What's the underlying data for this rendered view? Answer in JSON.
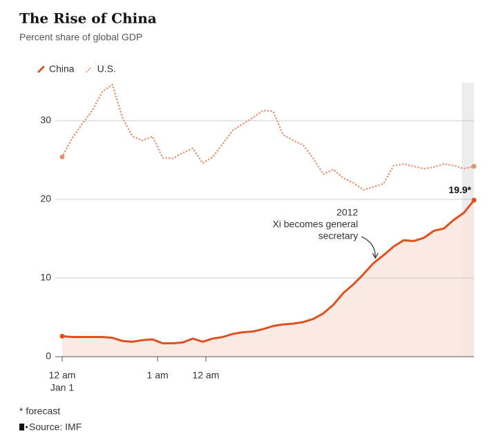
{
  "chart_data": {
    "type": "line",
    "title": "The Rise of China",
    "subtitle": "Percent share of global GDP",
    "x": [
      0,
      1,
      2,
      3,
      4,
      5,
      6,
      7,
      8,
      9,
      10,
      11,
      12,
      13,
      14,
      15,
      16,
      17,
      18,
      19,
      20,
      21,
      22,
      23,
      24,
      25,
      26,
      27,
      28,
      29,
      30,
      31,
      32,
      33,
      34,
      35,
      36,
      37,
      38,
      39,
      40,
      41
    ],
    "xlim": [
      0,
      41
    ],
    "xticks": [
      {
        "value": 0,
        "label": "12 am",
        "sublabel": "Jan 1"
      },
      {
        "value": 9.5,
        "label": "1 am"
      },
      {
        "value": 14.3,
        "label": "12 am"
      }
    ],
    "ylim": [
      0,
      35
    ],
    "yticks": [
      0,
      10,
      20,
      30
    ],
    "grid": true,
    "series": [
      {
        "name": "China",
        "color": "#e0501e",
        "style": "solid",
        "area_color": "#fae5de",
        "values": [
          2.6,
          2.5,
          2.5,
          2.5,
          2.5,
          2.4,
          2.0,
          1.9,
          2.1,
          2.2,
          1.7,
          1.7,
          1.8,
          2.3,
          1.9,
          2.3,
          2.5,
          2.9,
          3.1,
          3.2,
          3.5,
          3.9,
          4.1,
          4.2,
          4.4,
          4.8,
          5.5,
          6.6,
          8.1,
          9.2,
          10.5,
          11.9,
          12.9,
          14.0,
          14.8,
          14.7,
          15.1,
          16.0,
          16.3,
          17.4,
          18.3,
          19.9
        ],
        "end_label": "19.9*"
      },
      {
        "name": "U.S.",
        "color": "#e8906a",
        "style": "dotted",
        "values": [
          25.4,
          27.8,
          29.6,
          31.3,
          33.7,
          34.6,
          30.4,
          28.0,
          27.5,
          28.0,
          25.3,
          25.2,
          25.9,
          26.5,
          24.6,
          25.4,
          27.1,
          28.8,
          29.6,
          30.4,
          31.3,
          31.2,
          28.2,
          27.5,
          26.9,
          25.2,
          23.2,
          23.8,
          22.7,
          22.1,
          21.2,
          21.6,
          22.0,
          24.3,
          24.5,
          24.2,
          23.9,
          24.1,
          24.5,
          24.3,
          23.9,
          24.2
        ]
      }
    ],
    "forecast_range": [
      39.8,
      41
    ],
    "annotation": {
      "x": 29.8,
      "lines": [
        "2012",
        "Xi becomes general",
        "secretary"
      ]
    },
    "footnote": "* forecast",
    "source": "Source: IMF"
  }
}
